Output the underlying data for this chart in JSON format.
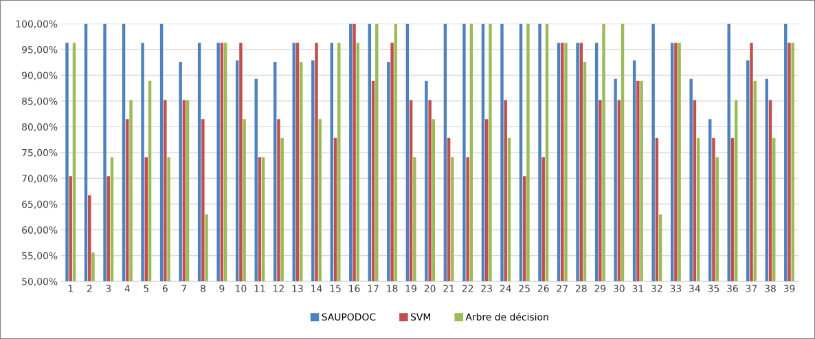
{
  "chart_data": {
    "type": "bar",
    "categories": [
      "1",
      "2",
      "3",
      "4",
      "5",
      "6",
      "7",
      "8",
      "9",
      "10",
      "11",
      "12",
      "13",
      "14",
      "15",
      "16",
      "17",
      "18",
      "19",
      "20",
      "21",
      "22",
      "23",
      "24",
      "25",
      "26",
      "27",
      "28",
      "29",
      "30",
      "31",
      "32",
      "33",
      "34",
      "35",
      "36",
      "37",
      "38",
      "39"
    ],
    "series": [
      {
        "name": "SAUPODOC",
        "color": "#4f81bd",
        "values": [
          96.3,
          100,
          100,
          100,
          96.3,
          100,
          92.6,
          96.3,
          96.3,
          92.9,
          89.3,
          92.6,
          96.3,
          92.9,
          96.3,
          100,
          100,
          92.6,
          100,
          88.9,
          100,
          100,
          100,
          100,
          100,
          100,
          96.3,
          96.3,
          96.3,
          89.3,
          92.9,
          100,
          96.3,
          89.3,
          81.5,
          100,
          92.9,
          89.3,
          100
        ]
      },
      {
        "name": "SVM",
        "color": "#c0504d",
        "values": [
          70.4,
          66.7,
          70.4,
          81.5,
          74.1,
          85.2,
          85.2,
          81.5,
          96.3,
          96.3,
          74.1,
          81.5,
          96.3,
          96.3,
          77.8,
          100,
          88.9,
          96.3,
          85.2,
          85.2,
          77.8,
          74.1,
          81.5,
          85.2,
          70.4,
          74.1,
          96.3,
          96.3,
          85.2,
          85.2,
          88.9,
          77.8,
          96.3,
          85.2,
          77.8,
          77.8,
          96.3,
          85.2,
          96.3
        ]
      },
      {
        "name": "Arbre de décision",
        "color": "#9bbb59",
        "values": [
          96.3,
          55.6,
          74.1,
          85.2,
          88.9,
          74.1,
          85.2,
          63.0,
          96.3,
          81.5,
          74.1,
          77.8,
          92.6,
          81.5,
          96.3,
          96.3,
          100,
          100,
          74.1,
          81.5,
          74.1,
          100,
          100,
          77.8,
          100,
          100,
          96.3,
          92.6,
          100,
          100,
          88.9,
          63.0,
          96.3,
          77.8,
          74.1,
          85.2,
          88.9,
          77.8,
          96.3
        ]
      }
    ],
    "ylim": [
      50,
      100
    ],
    "yticks": [
      {
        "value": 50,
        "label": "50,00%"
      },
      {
        "value": 55,
        "label": "55,00%"
      },
      {
        "value": 60,
        "label": "60,00%"
      },
      {
        "value": 65,
        "label": "65,00%"
      },
      {
        "value": 70,
        "label": "70,00%"
      },
      {
        "value": 75,
        "label": "75,00%"
      },
      {
        "value": 80,
        "label": "80,00%"
      },
      {
        "value": 85,
        "label": "85,00%"
      },
      {
        "value": 90,
        "label": "90,00%"
      },
      {
        "value": 95,
        "label": "95,00%"
      },
      {
        "value": 100,
        "label": "100,00%"
      }
    ],
    "grid": "y",
    "legend": "bottom"
  }
}
